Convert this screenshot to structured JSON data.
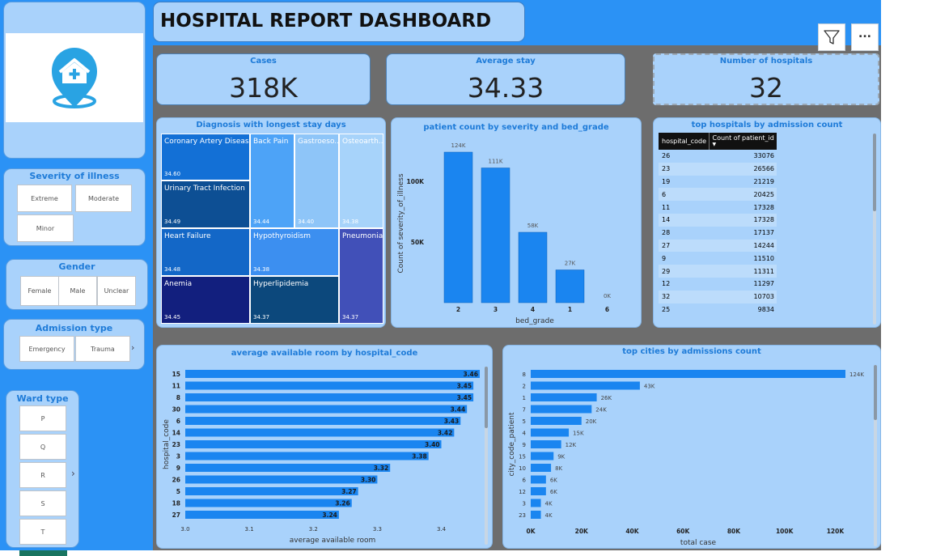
{
  "title": "HOSPITAL REPORT DASHBOARD",
  "toolbar": {
    "filter_icon": "filter-icon",
    "more_icon": "more-options-icon",
    "more_label": "..."
  },
  "logo": {
    "icon": "hospital-location-pin-icon",
    "accent": "#29a3e3"
  },
  "slicers": {
    "severity": {
      "title": "Severity of illness",
      "options": [
        "Extreme",
        "Moderate",
        "Minor"
      ]
    },
    "gender": {
      "title": "Gender",
      "options": [
        "Female",
        "Male",
        "Unclear"
      ]
    },
    "admission": {
      "title": "Admission type",
      "options": [
        "Emergency",
        "Trauma"
      ]
    },
    "ward": {
      "title": "Ward type",
      "options": [
        "P",
        "Q",
        "R",
        "S",
        "T"
      ]
    }
  },
  "kpis": {
    "cases": {
      "label": "Cases",
      "value": "318K"
    },
    "avg_stay": {
      "label": "Average stay",
      "value": "34.33"
    },
    "hospitals": {
      "label": "Number of hospitals",
      "value": "32"
    }
  },
  "treemap": {
    "title": "Diagnosis with longest stay days",
    "cells": [
      {
        "label": "Coronary Artery Disease",
        "value": "34.60",
        "color": "#1370d6"
      },
      {
        "label": "Urinary Tract Infection",
        "value": "34.49",
        "color": "#0d4f94"
      },
      {
        "label": "Heart Failure",
        "value": "34.48",
        "color": "#1367c7"
      },
      {
        "label": "Anemia",
        "value": "34.45",
        "color": "#121f7e"
      },
      {
        "label": "Back Pain",
        "value": "34.44",
        "color": "#4da3f7"
      },
      {
        "label": "Gastroeso...",
        "value": "34.40",
        "color": "#8ec5f8"
      },
      {
        "label": "Osteoarth...",
        "value": "34.38",
        "color": "#a7d3fa"
      },
      {
        "label": "Hypothyroidism",
        "value": "34.38",
        "color": "#3c8ff0"
      },
      {
        "label": "Hyperlipidemia",
        "value": "34.37",
        "color": "#0c487c"
      },
      {
        "label": "Pneumonia",
        "value": "34.37",
        "color": "#4150b8"
      }
    ]
  },
  "severity_chart": {
    "title": "patient count by severity and bed_grade",
    "xlabel": "bed_grade",
    "ylabel": "Count of severity_of_illness",
    "yticks": [
      "100K",
      "50K"
    ]
  },
  "top_hospitals": {
    "title": "top hospitals by admission count",
    "headers": [
      "hospital_code",
      "Count of patient_id"
    ],
    "rows": [
      [
        "26",
        "33076"
      ],
      [
        "23",
        "26566"
      ],
      [
        "19",
        "21219"
      ],
      [
        "6",
        "20425"
      ],
      [
        "11",
        "17328"
      ],
      [
        "14",
        "17328"
      ],
      [
        "28",
        "17137"
      ],
      [
        "27",
        "14244"
      ],
      [
        "9",
        "11510"
      ],
      [
        "29",
        "11311"
      ],
      [
        "12",
        "11297"
      ],
      [
        "32",
        "10703"
      ],
      [
        "25",
        "9834"
      ]
    ]
  },
  "room_chart": {
    "title": "average available room by hospital_code",
    "xlabel": "average available room",
    "ylabel": "hospital_code",
    "xticks": [
      "3.0",
      "3.1",
      "3.2",
      "3.3",
      "3.4"
    ]
  },
  "cities_chart": {
    "title": "top cities by admissions count",
    "xlabel": "total case",
    "ylabel": "city_code_patient",
    "xticks": [
      "0K",
      "20K",
      "40K",
      "60K",
      "80K",
      "100K",
      "120K"
    ]
  },
  "chart_data": [
    {
      "type": "bar",
      "title": "patient count by severity and bed_grade",
      "xlabel": "bed_grade",
      "ylabel": "Count of severity_of_illness",
      "categories": [
        "2",
        "3",
        "4",
        "1",
        "6"
      ],
      "values": [
        124000,
        111000,
        58000,
        27000,
        0
      ],
      "data_labels": [
        "124K",
        "111K",
        "58K",
        "27K",
        "0K"
      ],
      "ylim": [
        0,
        130000
      ],
      "color": "#1a85f0"
    },
    {
      "type": "bar",
      "orientation": "horizontal",
      "title": "average available room by hospital_code",
      "xlabel": "average available room",
      "ylabel": "hospital_code",
      "categories": [
        "15",
        "11",
        "8",
        "30",
        "6",
        "14",
        "23",
        "3",
        "9",
        "26",
        "5",
        "18",
        "27"
      ],
      "values": [
        3.46,
        3.45,
        3.45,
        3.44,
        3.43,
        3.42,
        3.4,
        3.38,
        3.32,
        3.3,
        3.27,
        3.26,
        3.24
      ],
      "data_labels": [
        "3.46",
        "3.45",
        "3.45",
        "3.44",
        "3.43",
        "3.42",
        "3.40",
        "3.38",
        "3.32",
        "3.30",
        "3.27",
        "3.26",
        "3.24"
      ],
      "xlim": [
        3.0,
        3.46
      ],
      "color": "#1a85f0"
    },
    {
      "type": "bar",
      "orientation": "horizontal",
      "title": "top cities by admissions count",
      "xlabel": "total case",
      "ylabel": "city_code_patient",
      "categories": [
        "8",
        "2",
        "1",
        "7",
        "5",
        "4",
        "9",
        "15",
        "10",
        "6",
        "12",
        "3",
        "23"
      ],
      "values": [
        124000,
        43000,
        26000,
        24000,
        20000,
        15000,
        12000,
        9000,
        8000,
        6000,
        6000,
        4000,
        4000
      ],
      "data_labels": [
        "124K",
        "43K",
        "26K",
        "24K",
        "20K",
        "15K",
        "12K",
        "9K",
        "8K",
        "6K",
        "6K",
        "4K",
        "4K"
      ],
      "xlim": [
        0,
        124000
      ],
      "color": "#1a85f0"
    }
  ]
}
